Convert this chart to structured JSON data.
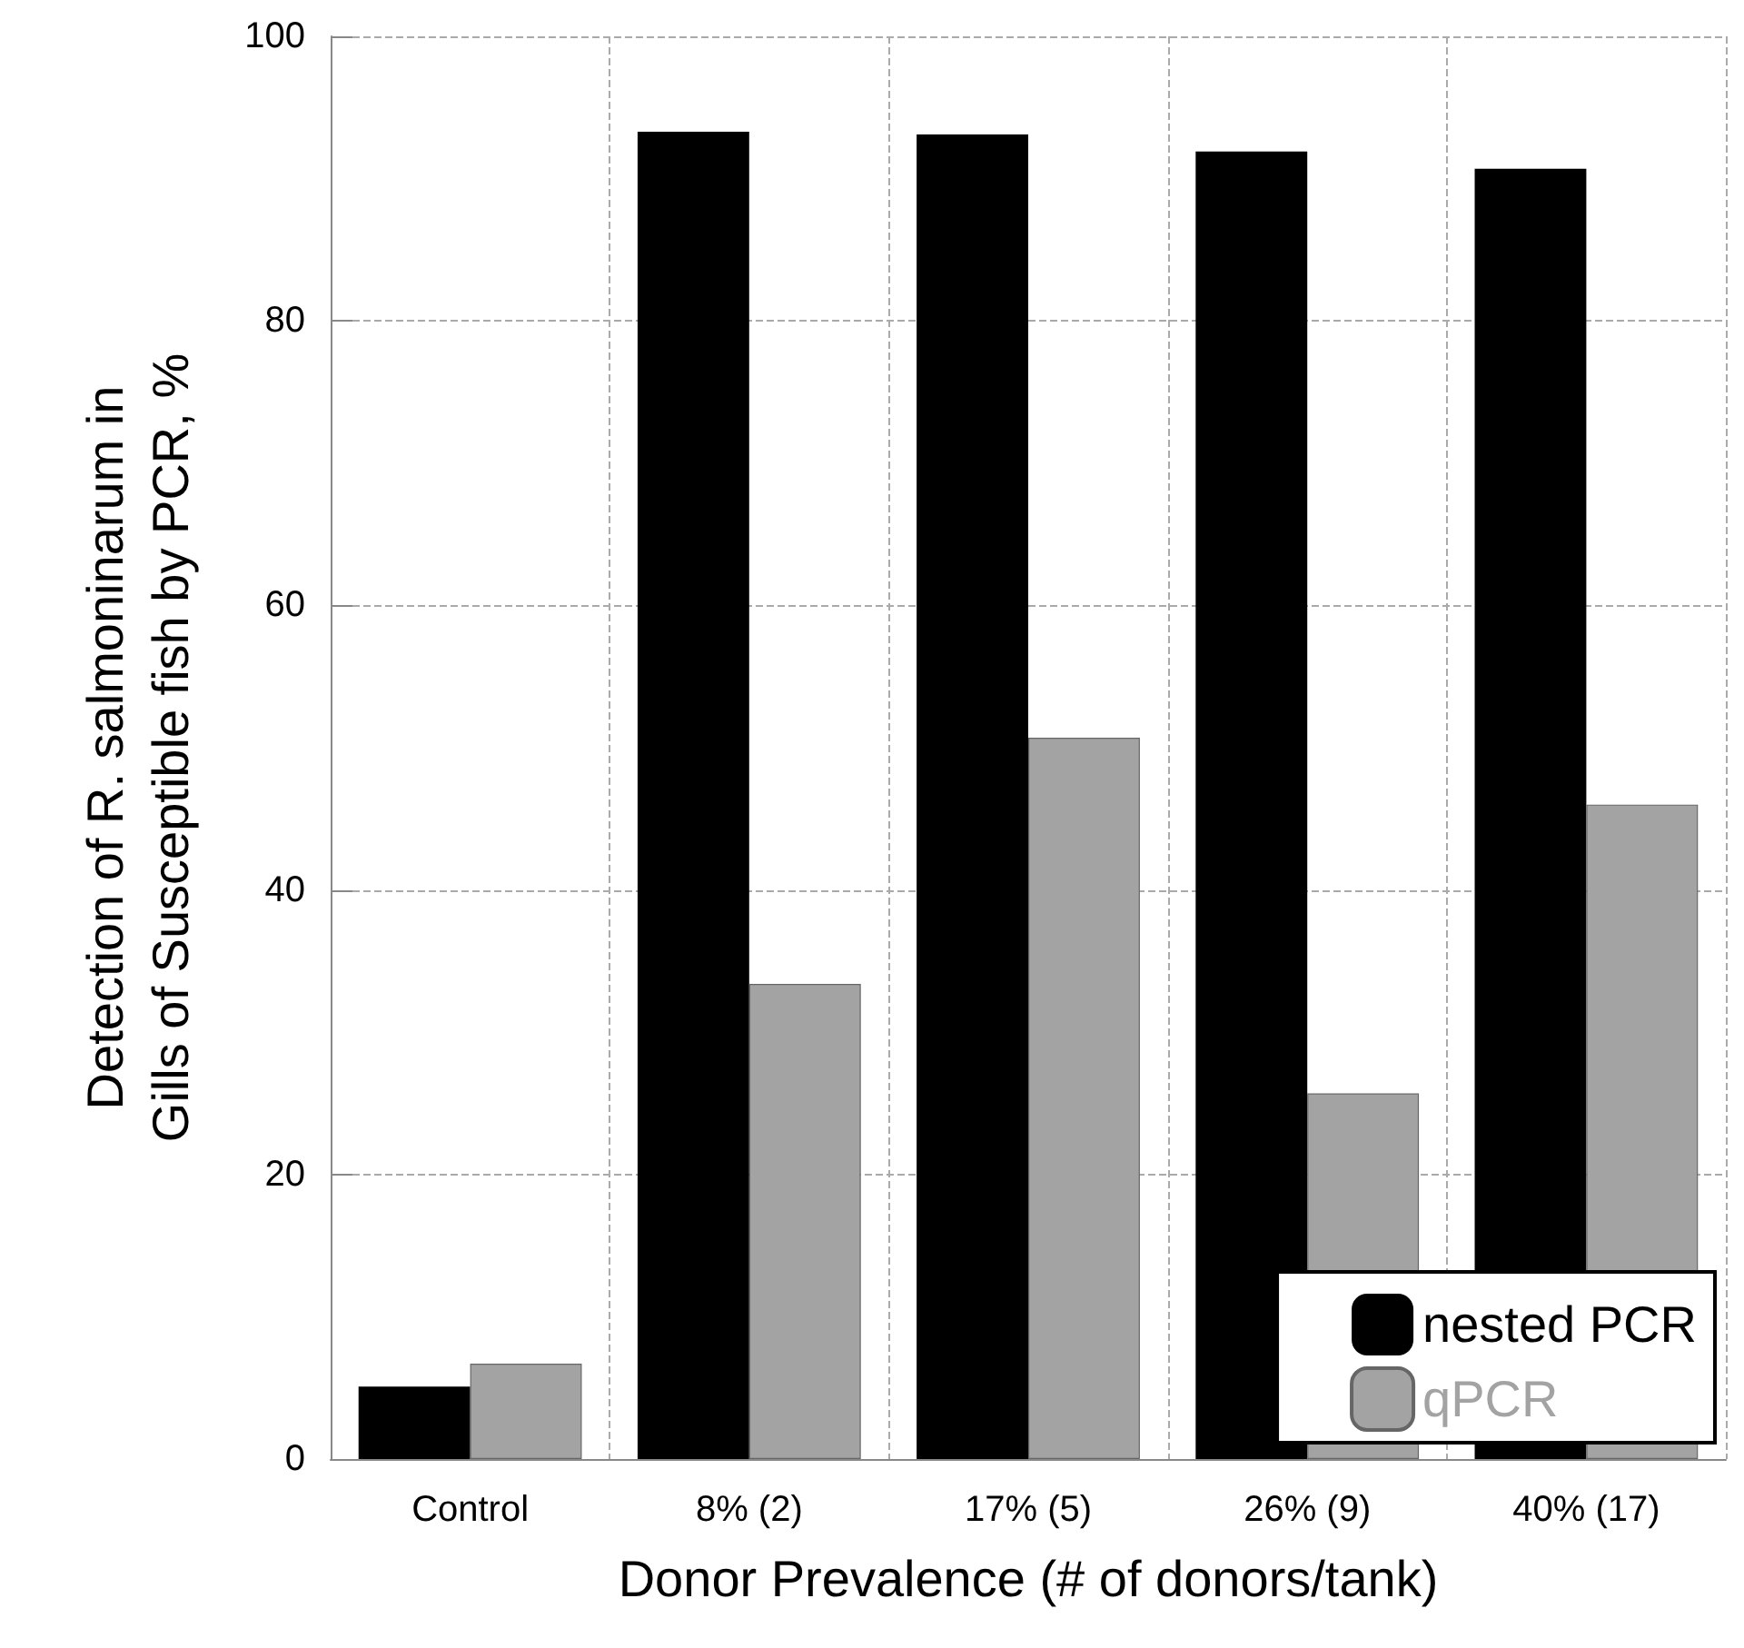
{
  "chart_data": {
    "type": "bar",
    "xlabel": "Donor Prevalence (# of donors/tank)",
    "ylabel": "Detection of R. salmoninarum in\nGills of Susceptible fish by PCR, %",
    "categories": [
      "Control",
      "8% (2)",
      "17% (5)",
      "26% (9)",
      "40% (17)"
    ],
    "series": [
      {
        "name": "nested PCR",
        "color": "#000000",
        "values": [
          5.1,
          93.3,
          93.1,
          91.9,
          90.7
        ]
      },
      {
        "name": "qPCR",
        "color": "#a3a3a3",
        "values": [
          6.7,
          33.4,
          50.7,
          25.7,
          46.0
        ]
      }
    ],
    "ylim": [
      0,
      100
    ],
    "yticks": [
      0,
      20,
      40,
      60,
      80,
      100
    ],
    "grid": true,
    "legend": "bottom right"
  }
}
